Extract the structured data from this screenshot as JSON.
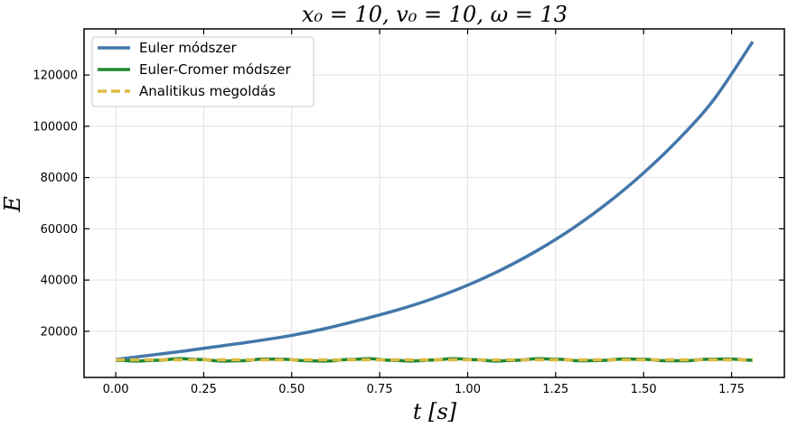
{
  "chart_data": {
    "type": "line",
    "title": "x₀ = 10, v₀ = 10, ω = 13",
    "xlabel": "t [s]",
    "ylabel": "E",
    "xlim": [
      -0.09,
      1.9
    ],
    "ylim": [
      2000,
      138000
    ],
    "xticks": [
      0.0,
      0.25,
      0.5,
      0.75,
      1.0,
      1.25,
      1.5,
      1.75
    ],
    "xtick_labels": [
      "0.00",
      "0.25",
      "0.50",
      "0.75",
      "1.00",
      "1.25",
      "1.50",
      "1.75"
    ],
    "yticks": [
      20000,
      40000,
      60000,
      80000,
      100000,
      120000
    ],
    "ytick_labels": [
      "20000",
      "40000",
      "60000",
      "80000",
      "100000",
      "120000"
    ],
    "grid": true,
    "legend_position": "top-left",
    "series": [
      {
        "name": "Euler módszer",
        "color": "#4477aa",
        "style": "solid",
        "x": [
          0.0,
          0.1,
          0.2,
          0.3,
          0.4,
          0.5,
          0.6,
          0.7,
          0.8,
          0.9,
          1.0,
          1.1,
          1.2,
          1.3,
          1.4,
          1.5,
          1.6,
          1.7,
          1.81
        ],
        "y": [
          9000,
          10700,
          12400,
          14300,
          16200,
          18400,
          21200,
          24600,
          28300,
          32700,
          38000,
          44300,
          51700,
          60300,
          70300,
          81800,
          95000,
          110500,
          133000
        ]
      },
      {
        "name": "Euler-Cromer módszer",
        "color": "#228833",
        "style": "solid",
        "x": [
          0.0,
          0.06,
          0.12,
          0.18,
          0.24,
          0.3,
          0.36,
          0.42,
          0.48,
          0.54,
          0.6,
          0.66,
          0.72,
          0.78,
          0.84,
          0.9,
          0.96,
          1.02,
          1.08,
          1.14,
          1.2,
          1.26,
          1.32,
          1.38,
          1.44,
          1.5,
          1.56,
          1.62,
          1.68,
          1.74,
          1.81
        ],
        "y": [
          8700,
          8400,
          8700,
          9300,
          9000,
          8400,
          8500,
          9200,
          9100,
          8500,
          8400,
          9000,
          9300,
          8700,
          8400,
          8800,
          9300,
          8900,
          8400,
          8700,
          9300,
          9100,
          8500,
          8600,
          9200,
          9100,
          8500,
          8500,
          9100,
          9200,
          8700
        ]
      },
      {
        "name": "Analitikus megoldás",
        "color": "#ddbb44",
        "style": "dashed",
        "x": [
          0.0,
          1.81
        ],
        "y": [
          8850,
          8850
        ]
      }
    ]
  }
}
